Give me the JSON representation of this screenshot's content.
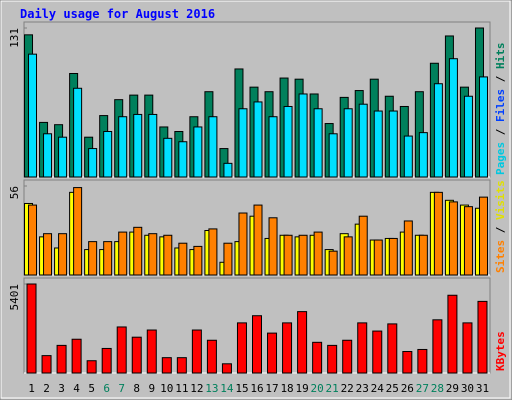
{
  "title": "Daily usage for August 2016",
  "categories": [
    "1",
    "2",
    "3",
    "4",
    "5",
    "6",
    "7",
    "8",
    "9",
    "10",
    "11",
    "12",
    "13",
    "14",
    "15",
    "16",
    "17",
    "18",
    "19",
    "20",
    "21",
    "22",
    "23",
    "24",
    "25",
    "26",
    "27",
    "28",
    "29",
    "30",
    "31"
  ],
  "category_color": "#000000",
  "weekend_color": "#00805c",
  "weekend_indexes": [
    5,
    6,
    12,
    13,
    19,
    20,
    26,
    27
  ],
  "chart_data": [
    {
      "type": "bar",
      "ylim": [
        0,
        131
      ],
      "yticks": [
        131
      ],
      "legend": [
        {
          "name": "Pages",
          "color": "#00c8e0"
        },
        {
          "name": "Files",
          "color": "#0040ff"
        },
        {
          "name": "Hits",
          "color": "#00805c"
        }
      ],
      "series": [
        {
          "color": "#00805c",
          "values": [
            125,
            48,
            46,
            91,
            35,
            54,
            68,
            72,
            72,
            44,
            40,
            53,
            75,
            25,
            95,
            79,
            75,
            87,
            86,
            73,
            47,
            70,
            76,
            86,
            71,
            62,
            75,
            100,
            124,
            79,
            131
          ]
        },
        {
          "color": "#00e0ff",
          "values": [
            108,
            38,
            35,
            78,
            25,
            40,
            53,
            55,
            55,
            34,
            31,
            44,
            53,
            12,
            60,
            66,
            53,
            62,
            73,
            60,
            38,
            60,
            64,
            58,
            58,
            36,
            39,
            82,
            104,
            71,
            88
          ]
        }
      ]
    },
    {
      "type": "bar",
      "ylim": [
        0,
        56
      ],
      "yticks": [
        56
      ],
      "legend": [
        {
          "name": "Sites",
          "color": "#ff8000"
        },
        {
          "name": "Visits",
          "color": "#e0e000"
        }
      ],
      "series": [
        {
          "color": "#ffff00",
          "values": [
            45,
            24,
            17,
            52,
            16,
            16,
            21,
            27,
            25,
            24,
            17,
            16,
            28,
            8,
            21,
            37,
            23,
            25,
            24,
            25,
            16,
            26,
            32,
            22,
            23,
            27,
            25,
            52,
            47,
            44,
            42
          ]
        },
        {
          "color": "#ff8000",
          "values": [
            44,
            26,
            26,
            55,
            21,
            21,
            27,
            30,
            26,
            25,
            20,
            18,
            29,
            20,
            39,
            44,
            36,
            25,
            25,
            27,
            15,
            24,
            37,
            22,
            23,
            34,
            25,
            52,
            46,
            43,
            49
          ]
        }
      ]
    },
    {
      "type": "bar",
      "ylim": [
        0,
        5401
      ],
      "yticks": [
        5401
      ],
      "legend": [
        {
          "name": "KBytes",
          "color": "#ff0000"
        }
      ],
      "series": [
        {
          "color": "#ff0000",
          "values": [
            5401,
            1055,
            1676,
            2049,
            745,
            1490,
            2794,
            2173,
            2608,
            931,
            931,
            2608,
            1987,
            559,
            3042,
            3477,
            2421,
            3042,
            3725,
            1862,
            1676,
            1987,
            3042,
            2545,
            2980,
            1304,
            1428,
            3228,
            4718,
            3042,
            4346
          ]
        }
      ]
    }
  ]
}
